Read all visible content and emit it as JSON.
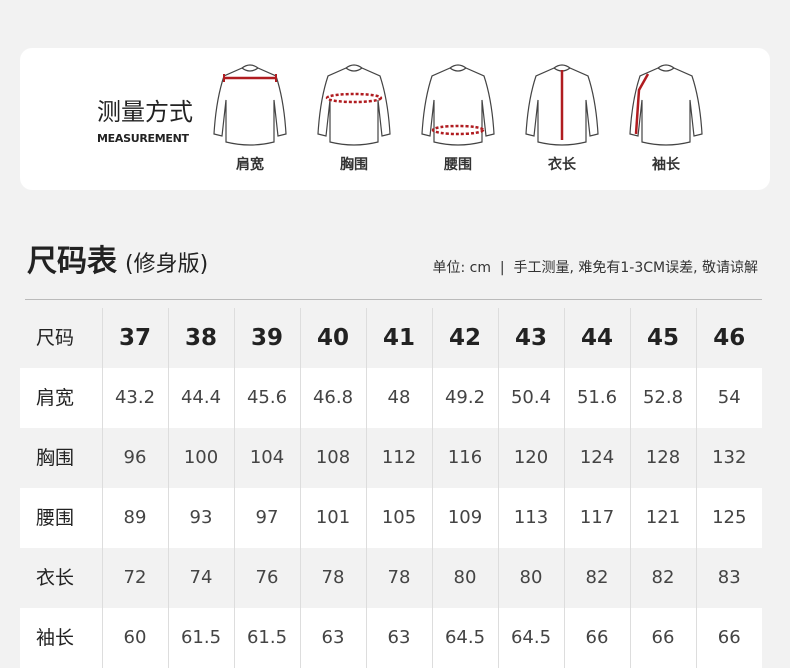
{
  "measurement": {
    "title": "测量方式",
    "subtitle": "MEASUREMENT",
    "items": [
      {
        "label": "肩宽",
        "icon": "shirt-shoulder-icon"
      },
      {
        "label": "胸围",
        "icon": "shirt-chest-icon"
      },
      {
        "label": "腰围",
        "icon": "shirt-waist-icon"
      },
      {
        "label": "衣长",
        "icon": "shirt-length-icon"
      },
      {
        "label": "袖长",
        "icon": "shirt-sleeve-icon"
      }
    ],
    "accent": "#b01c20"
  },
  "chart": {
    "title": "尺码表",
    "fit": "(修身版)",
    "note": "单位: cm  |  手工测量, 难免有1-3CM误差, 敬请谅解"
  },
  "table": {
    "header": {
      "label": "尺码",
      "values": [
        "37",
        "38",
        "39",
        "40",
        "41",
        "42",
        "43",
        "44",
        "45",
        "46"
      ]
    },
    "rows": [
      {
        "label": "肩宽",
        "values": [
          "43.2",
          "44.4",
          "45.6",
          "46.8",
          "48",
          "49.2",
          "50.4",
          "51.6",
          "52.8",
          "54"
        ]
      },
      {
        "label": "胸围",
        "values": [
          "96",
          "100",
          "104",
          "108",
          "112",
          "116",
          "120",
          "124",
          "128",
          "132"
        ]
      },
      {
        "label": "腰围",
        "values": [
          "89",
          "93",
          "97",
          "101",
          "105",
          "109",
          "113",
          "117",
          "121",
          "125"
        ]
      },
      {
        "label": "衣长",
        "values": [
          "72",
          "74",
          "76",
          "78",
          "78",
          "80",
          "80",
          "82",
          "82",
          "83"
        ]
      },
      {
        "label": "袖长",
        "values": [
          "60",
          "61.5",
          "61.5",
          "63",
          "63",
          "64.5",
          "64.5",
          "66",
          "66",
          "66"
        ]
      }
    ]
  }
}
